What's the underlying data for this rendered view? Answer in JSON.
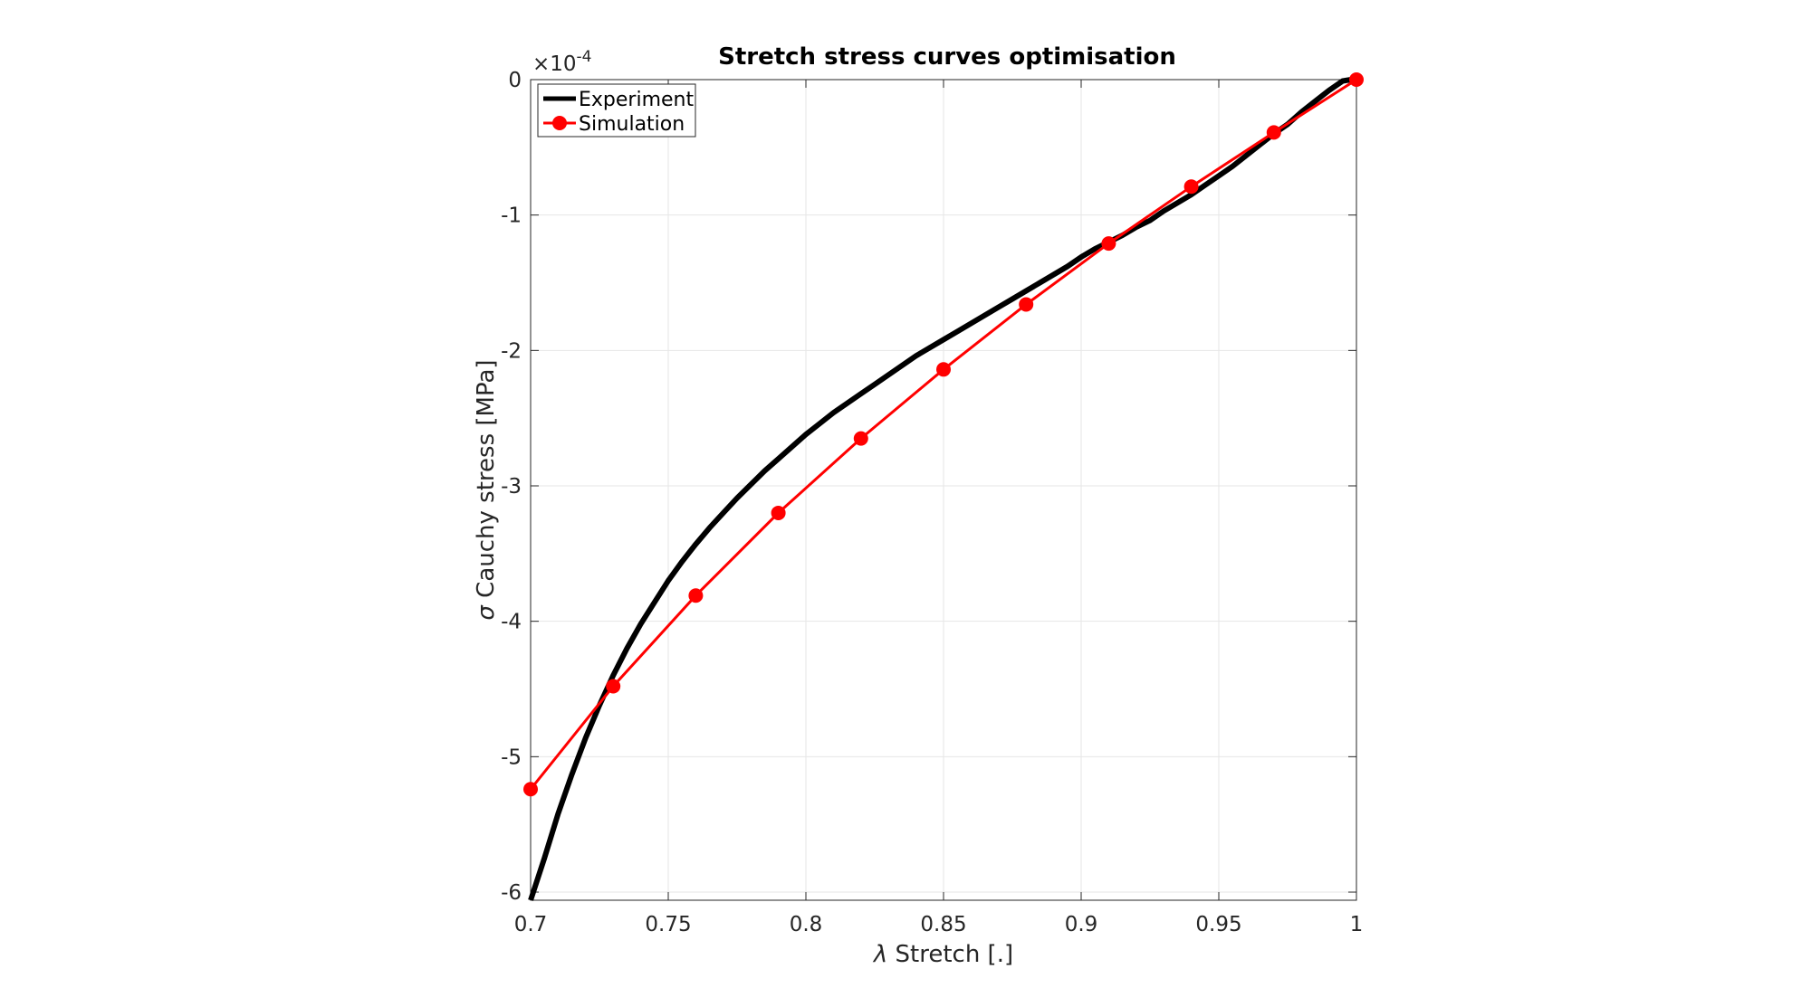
{
  "chart_data": {
    "type": "line",
    "title": "Stretch stress curves optimisation",
    "xlabel_symbol": "λ",
    "xlabel": "Stretch [.]",
    "ylabel_symbol": "σ",
    "ylabel": "Cauchy stress [MPa]",
    "y_exponent_base": "×10",
    "y_exponent_power": "-4",
    "xlim": [
      0.7,
      1.0
    ],
    "ylim": [
      -6.06,
      0
    ],
    "xticks": [
      0.7,
      0.75,
      0.8,
      0.85,
      0.9,
      0.95,
      1.0
    ],
    "xtick_labels": [
      "0.7",
      "0.75",
      "0.8",
      "0.85",
      "0.9",
      "0.95",
      "1"
    ],
    "yticks": [
      0,
      -1,
      -2,
      -3,
      -4,
      -5,
      -6
    ],
    "ytick_labels": [
      "0",
      "-1",
      "-2",
      "-3",
      "-4",
      "-5",
      "-6"
    ],
    "grid": true,
    "legend_position": "top-left",
    "series": [
      {
        "name": "Experiment",
        "color": "#000000",
        "marker": "none",
        "x": [
          0.7,
          0.705,
          0.71,
          0.715,
          0.72,
          0.725,
          0.73,
          0.735,
          0.74,
          0.745,
          0.75,
          0.755,
          0.76,
          0.765,
          0.77,
          0.775,
          0.78,
          0.785,
          0.79,
          0.795,
          0.8,
          0.805,
          0.81,
          0.815,
          0.82,
          0.825,
          0.83,
          0.835,
          0.84,
          0.845,
          0.85,
          0.855,
          0.86,
          0.865,
          0.87,
          0.875,
          0.88,
          0.885,
          0.89,
          0.895,
          0.9,
          0.905,
          0.91,
          0.915,
          0.92,
          0.922,
          0.925,
          0.93,
          0.935,
          0.94,
          0.945,
          0.95,
          0.955,
          0.96,
          0.965,
          0.97,
          0.975,
          0.98,
          0.985,
          0.99,
          0.995,
          0.998,
          1.0
        ],
        "y": [
          -6.06,
          -5.75,
          -5.42,
          -5.13,
          -4.86,
          -4.62,
          -4.4,
          -4.2,
          -4.02,
          -3.86,
          -3.7,
          -3.56,
          -3.43,
          -3.31,
          -3.2,
          -3.09,
          -2.99,
          -2.89,
          -2.8,
          -2.71,
          -2.62,
          -2.54,
          -2.46,
          -2.39,
          -2.32,
          -2.25,
          -2.18,
          -2.11,
          -2.04,
          -1.98,
          -1.92,
          -1.86,
          -1.8,
          -1.74,
          -1.68,
          -1.62,
          -1.56,
          -1.5,
          -1.44,
          -1.38,
          -1.31,
          -1.25,
          -1.2,
          -1.15,
          -1.09,
          -1.07,
          -1.04,
          -0.97,
          -0.91,
          -0.85,
          -0.78,
          -0.71,
          -0.64,
          -0.56,
          -0.48,
          -0.4,
          -0.33,
          -0.24,
          -0.16,
          -0.08,
          -0.01,
          0.0,
          0.0
        ]
      },
      {
        "name": "Simulation",
        "color": "#ff0000",
        "marker": "circle",
        "x": [
          0.7,
          0.73,
          0.76,
          0.79,
          0.82,
          0.85,
          0.88,
          0.91,
          0.94,
          0.97,
          1.0
        ],
        "y": [
          -5.24,
          -4.48,
          -3.81,
          -3.2,
          -2.65,
          -2.14,
          -1.66,
          -1.21,
          -0.79,
          -0.39,
          0.0
        ]
      }
    ]
  }
}
